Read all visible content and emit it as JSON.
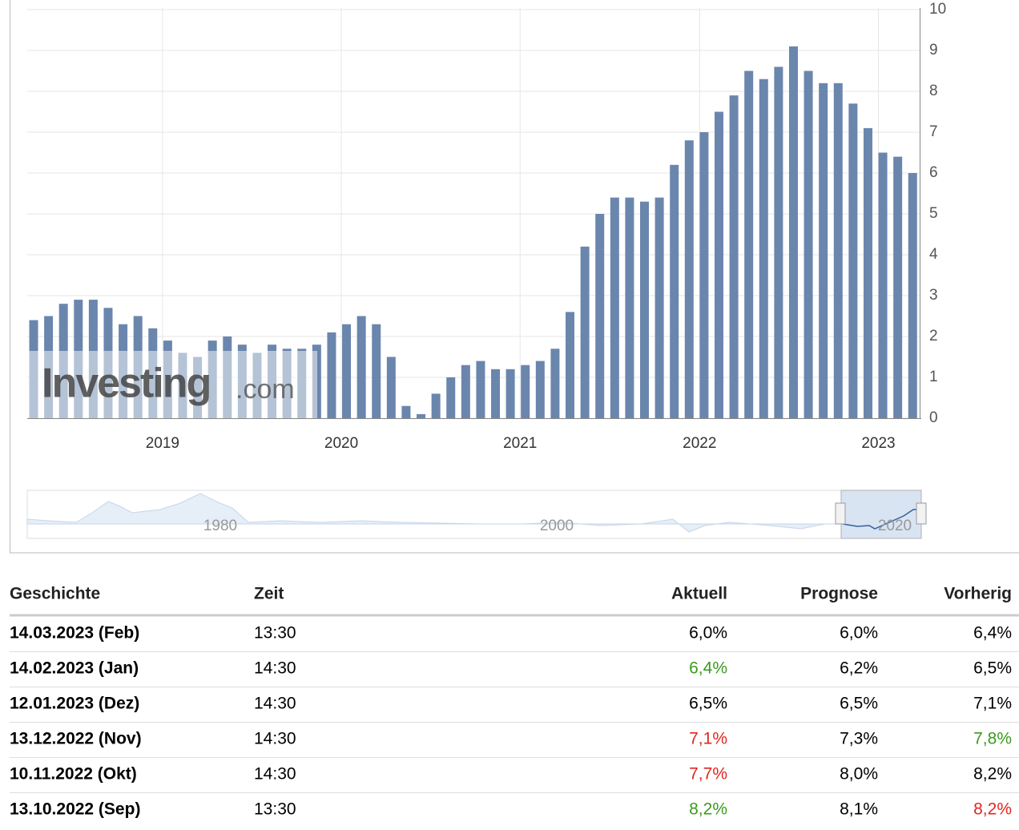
{
  "chart_data": {
    "type": "bar",
    "color": "#6a86ad",
    "categories": [
      null,
      null,
      null,
      null,
      null,
      null,
      null,
      null,
      null,
      null,
      null,
      null,
      null,
      null,
      null,
      null,
      null,
      null,
      null,
      null,
      null,
      null,
      null,
      null,
      null,
      null,
      null,
      null,
      null,
      null,
      null,
      null,
      null,
      null,
      null,
      null,
      null,
      null,
      null,
      null,
      null,
      null,
      null,
      null,
      null,
      null,
      null,
      null,
      null,
      null,
      null,
      null,
      null,
      null,
      null,
      null,
      null,
      null,
      null,
      null
    ],
    "values": [
      2.4,
      2.5,
      2.8,
      2.9,
      2.9,
      2.7,
      2.3,
      2.5,
      2.2,
      1.9,
      1.6,
      1.5,
      1.9,
      2.0,
      1.8,
      1.6,
      1.8,
      1.7,
      1.7,
      1.8,
      2.1,
      2.3,
      2.5,
      2.3,
      1.5,
      0.3,
      0.1,
      0.6,
      1.0,
      1.3,
      1.4,
      1.2,
      1.2,
      1.3,
      1.4,
      1.7,
      2.6,
      4.2,
      5.0,
      5.4,
      5.4,
      5.3,
      5.4,
      6.2,
      6.8,
      7.0,
      7.5,
      7.9,
      8.5,
      8.3,
      8.6,
      9.1,
      8.5,
      8.2,
      8.2,
      7.7,
      7.1,
      6.5,
      6.4,
      6.0
    ],
    "ylim": [
      0,
      10
    ],
    "yticks": [
      0,
      1,
      2,
      3,
      4,
      5,
      6,
      7,
      8,
      9,
      10
    ],
    "xlim": [
      -0.43,
      59.47
    ],
    "xticks": [
      {
        "value": 8.65,
        "label": "2019"
      },
      {
        "value": 20.65,
        "label": "2020"
      },
      {
        "value": 32.65,
        "label": "2021"
      },
      {
        "value": 44.7,
        "label": "2022"
      },
      {
        "value": 56.7,
        "label": "2023"
      }
    ],
    "grid": true,
    "watermark": [
      "Investing",
      ".com"
    ],
    "navigator_labels": [
      "1980",
      "2000",
      "2020"
    ]
  },
  "table": {
    "header": [
      "Geschichte",
      "Zeit",
      "Aktuell",
      "Prognose",
      "Vorherig"
    ],
    "rows": [
      [
        "14.03.2023 (Feb)",
        "13:30",
        "6,0%",
        "6,0%",
        "6,4%"
      ],
      [
        "14.02.2023 (Jan)",
        "14:30",
        "6,4%",
        "6,2%",
        "6,5%"
      ],
      [
        "12.01.2023 (Dez)",
        "14:30",
        "6,5%",
        "6,5%",
        "7,1%"
      ],
      [
        "13.12.2022 (Nov)",
        "14:30",
        "7,1%",
        "7,3%",
        "7,8%"
      ],
      [
        "10.11.2022 (Okt)",
        "14:30",
        "7,7%",
        "8,0%",
        "8,2%"
      ],
      [
        "13.10.2022 (Sep)",
        "13:30",
        "8,2%",
        "8,1%",
        "8,2%"
      ]
    ],
    "cell_colors": [
      [
        "#000",
        "#000",
        "#000",
        "#000",
        "#000"
      ],
      [
        "#000",
        "#000",
        "#3c9a1e",
        "#000",
        "#000"
      ],
      [
        "#000",
        "#000",
        "#000",
        "#000",
        "#000"
      ],
      [
        "#000",
        "#000",
        "#e0271f",
        "#000",
        "#3c9a1e"
      ],
      [
        "#000",
        "#000",
        "#e0271f",
        "#000",
        "#000"
      ],
      [
        "#000",
        "#000",
        "#3c9a1e",
        "#000",
        "#e0271f"
      ]
    ]
  }
}
